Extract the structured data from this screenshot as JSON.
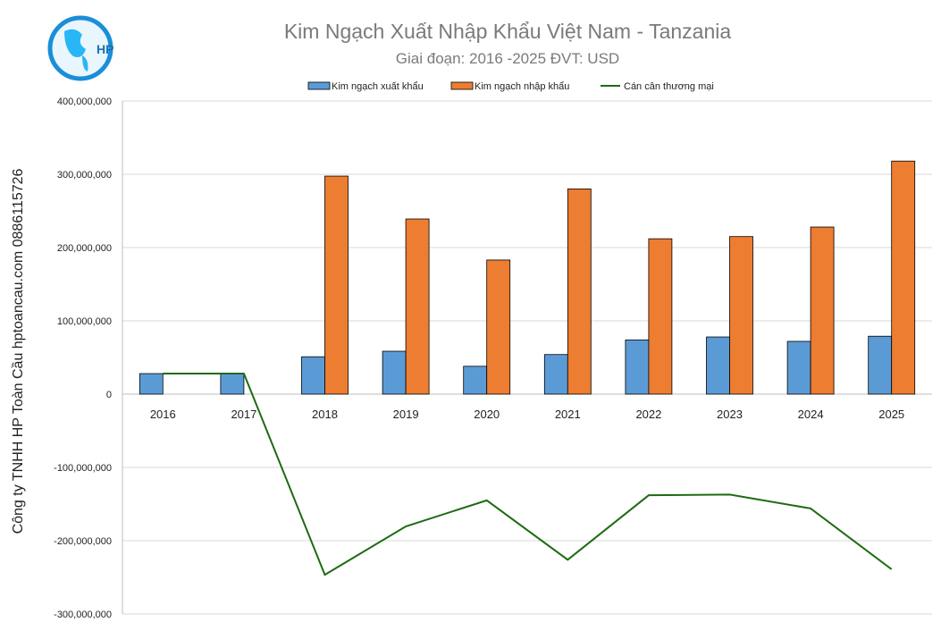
{
  "chart_data": {
    "type": "bar+line",
    "title": "Kim Ngạch Xuất Nhập Khẩu Việt Nam - Tanzania",
    "subtitle": "Giai đoạn: 2016 -2025  ĐVT: USD",
    "side_label": "Công ty TNHH HP Toàn Cầu hptoancau.com 0886115726",
    "logo_text": "HP",
    "categories": [
      "2016",
      "2017",
      "2018",
      "2019",
      "2020",
      "2021",
      "2022",
      "2023",
      "2024",
      "2025"
    ],
    "ylim": [
      -300000000,
      400000000
    ],
    "yticks": [
      -300000000,
      -200000000,
      -100000000,
      0,
      100000000,
      200000000,
      300000000,
      400000000
    ],
    "ytick_labels": [
      "-300,000,000",
      "-200,000,000",
      "-100,000,000",
      "0",
      "100,000,000",
      "200,000,000",
      "300,000,000",
      "400,000,000"
    ],
    "grid": true,
    "legend_position": "top",
    "series": [
      {
        "name": "Kim ngạch xuất khẩu",
        "type": "bar",
        "color": "#5B9BD5",
        "values": [
          28000000,
          28000000,
          51000000,
          58500000,
          38000000,
          54000000,
          74000000,
          78000000,
          72000000,
          79000000
        ]
      },
      {
        "name": "Kim ngạch nhập khẩu",
        "type": "bar",
        "color": "#ED7D31",
        "values": [
          0,
          0,
          297500000,
          239000000,
          183000000,
          280000000,
          212000000,
          215000000,
          228000000,
          318000000
        ]
      },
      {
        "name": "Cán cân thương mại",
        "type": "line",
        "color": "#1E6B12",
        "values": [
          28000000,
          28000000,
          -246500000,
          -180500000,
          -145000000,
          -226000000,
          -138000000,
          -137000000,
          -156000000,
          -239000000
        ]
      }
    ]
  }
}
